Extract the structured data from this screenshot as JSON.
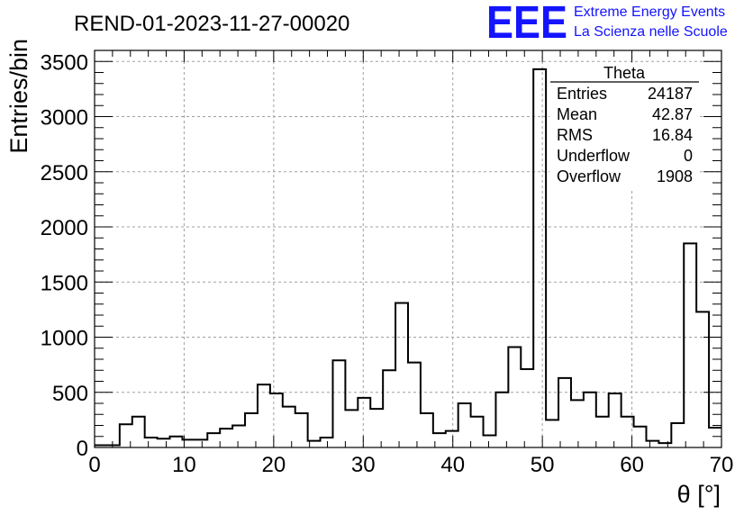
{
  "header": {
    "title": "REND-01-2023-11-27-00020",
    "logo_text": "EEE",
    "banner_line1": "Extreme Energy Events",
    "banner_line2": "La Scienza nelle Scuole"
  },
  "stats_box": {
    "name": "Theta",
    "rows": [
      {
        "label": "Entries",
        "value": "24187"
      },
      {
        "label": "Mean",
        "value": "42.87"
      },
      {
        "label": "RMS",
        "value": "16.84"
      },
      {
        "label": "Underflow",
        "value": "0"
      },
      {
        "label": "Overflow",
        "value": "1908"
      }
    ]
  },
  "colors": {
    "line": "#000000",
    "grid": "#a0a0a0",
    "brand_blue": "#1414ff"
  },
  "chart_data": {
    "type": "bar",
    "style": "step-histogram",
    "title": "REND-01-2023-11-27-00020",
    "xlabel": "θ [°]",
    "ylabel": "Entries/bin",
    "xlim": [
      0,
      70
    ],
    "ylim": [
      0,
      3600
    ],
    "grid": true,
    "bin_width": 1.4,
    "bin_edges_start": 0,
    "values": [
      20,
      20,
      210,
      280,
      90,
      80,
      100,
      70,
      70,
      130,
      170,
      200,
      310,
      570,
      490,
      370,
      310,
      60,
      90,
      790,
      340,
      450,
      350,
      700,
      1310,
      770,
      310,
      130,
      150,
      400,
      280,
      110,
      500,
      910,
      710,
      3430,
      250,
      630,
      430,
      500,
      280,
      490,
      280,
      190,
      60,
      40,
      220,
      1850,
      1230,
      180
    ],
    "x_ticks": [
      0,
      10,
      20,
      30,
      40,
      50,
      60,
      70
    ],
    "y_ticks": [
      0,
      500,
      1000,
      1500,
      2000,
      2500,
      3000,
      3500
    ]
  }
}
